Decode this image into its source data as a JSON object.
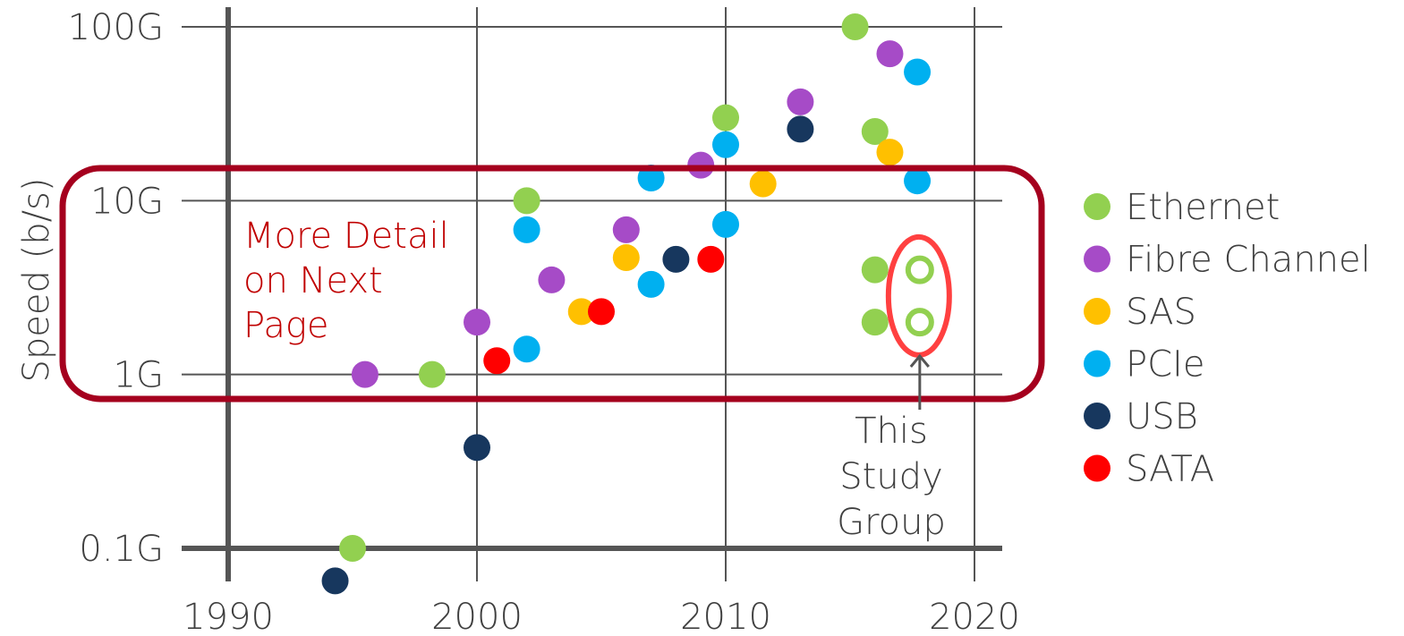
{
  "chart_data": {
    "type": "scatter",
    "title": "",
    "xlabel": "",
    "ylabel": "Speed (b/s)",
    "x_ticks": [
      1990,
      2000,
      2010,
      2020
    ],
    "x_tick_labels": [
      "1990",
      "2000",
      "2010",
      "2020"
    ],
    "y_scale": "log",
    "y_ticks": [
      0.1,
      1,
      10,
      100
    ],
    "y_tick_labels": [
      "0.1G",
      "1G",
      "10G",
      "100G"
    ],
    "xlim": [
      1988.2,
      2021.2
    ],
    "ylim": [
      0.06,
      120
    ],
    "grid": true,
    "legend_position": "right",
    "series": [
      {
        "name": "Ethernet",
        "color": "#92d050",
        "points": [
          [
            1995,
            0.1
          ],
          [
            1998.2,
            1
          ],
          [
            2002,
            10
          ],
          [
            2010,
            30
          ],
          [
            2015.2,
            100
          ],
          [
            2016,
            25
          ],
          [
            2016,
            4
          ],
          [
            2016,
            2
          ]
        ]
      },
      {
        "name": "Fibre Channel",
        "color": "#a64bc7",
        "points": [
          [
            1995.5,
            1
          ],
          [
            2000,
            2
          ],
          [
            2003,
            3.5
          ],
          [
            2006,
            6.8
          ],
          [
            2009,
            16
          ],
          [
            2013,
            37
          ],
          [
            2016.6,
            70
          ]
        ]
      },
      {
        "name": "SAS",
        "color": "#ffc000",
        "points": [
          [
            2004.2,
            2.3
          ],
          [
            2006,
            4.7
          ],
          [
            2011.5,
            12.5
          ],
          [
            2016.6,
            19
          ]
        ]
      },
      {
        "name": "PCIe",
        "color": "#00b0f0",
        "points": [
          [
            2002,
            1.4
          ],
          [
            2002,
            6.8
          ],
          [
            2007,
            3.3
          ],
          [
            2007,
            13.5
          ],
          [
            2010,
            7.3
          ],
          [
            2010,
            21
          ],
          [
            2017.7,
            55
          ],
          [
            2017.7,
            13
          ]
        ]
      },
      {
        "name": "USB",
        "color": "#17375e",
        "points": [
          [
            1994.3,
            0.065
          ],
          [
            2000,
            0.38
          ],
          [
            2008,
            4.6
          ],
          [
            2013,
            25.8
          ]
        ]
      },
      {
        "name": "SATA",
        "color": "#ff0000",
        "points": [
          [
            2000.8,
            1.2
          ],
          [
            2005,
            2.3
          ],
          [
            2009.4,
            4.6
          ]
        ]
      }
    ],
    "study_points": [
      [
        2017.8,
        4
      ],
      [
        2017.8,
        2
      ]
    ],
    "annotations": [
      {
        "id": "detail",
        "lines": [
          "More Detail",
          "on Next",
          "Page"
        ],
        "color": "#c00000"
      },
      {
        "id": "study",
        "lines": [
          "This",
          "Study",
          "Group"
        ],
        "color": "#3f3f3f"
      }
    ]
  }
}
